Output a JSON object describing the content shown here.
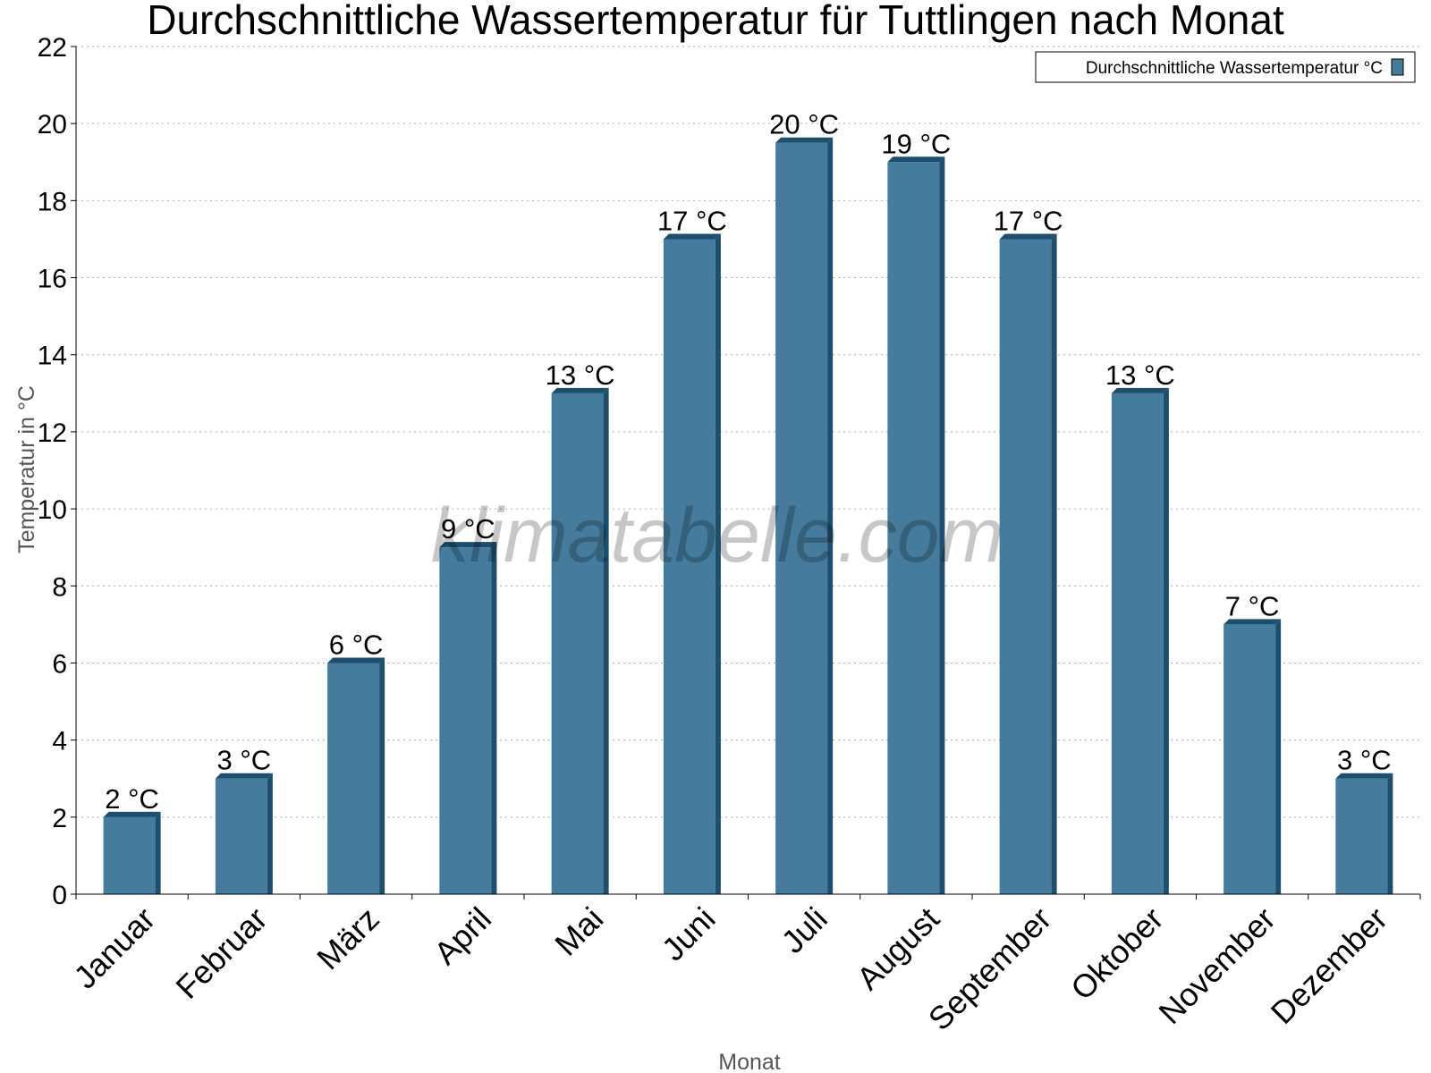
{
  "chart_data": {
    "type": "bar",
    "title": "Durchschnittliche Wassertemperatur für Tuttlingen nach Monat",
    "xlabel": "Monat",
    "ylabel": "Temperatur in °C",
    "ylim": [
      0,
      22
    ],
    "yticks": [
      0,
      2,
      4,
      6,
      8,
      10,
      12,
      14,
      16,
      18,
      20,
      22
    ],
    "grid": true,
    "legend_position": "top-right",
    "categories": [
      "Januar",
      "Februar",
      "März",
      "April",
      "Mai",
      "Juni",
      "Juli",
      "August",
      "September",
      "Oktober",
      "November",
      "Dezember"
    ],
    "series": [
      {
        "name": "Durchschnittliche Wassertemperatur °C",
        "values": [
          2,
          3,
          6,
          9,
          13,
          17,
          19.5,
          19,
          17,
          13,
          7,
          3
        ],
        "labels": [
          "2 °C",
          "3 °C",
          "6 °C",
          "9 °C",
          "13 °C",
          "17 °C",
          "20 °C",
          "19 °C",
          "17 °C",
          "13 °C",
          "7 °C",
          "3 °C"
        ],
        "color": "#457b9d"
      }
    ],
    "bar_side_color": "#1d4e6e",
    "watermark": "klimatabelle.com"
  }
}
